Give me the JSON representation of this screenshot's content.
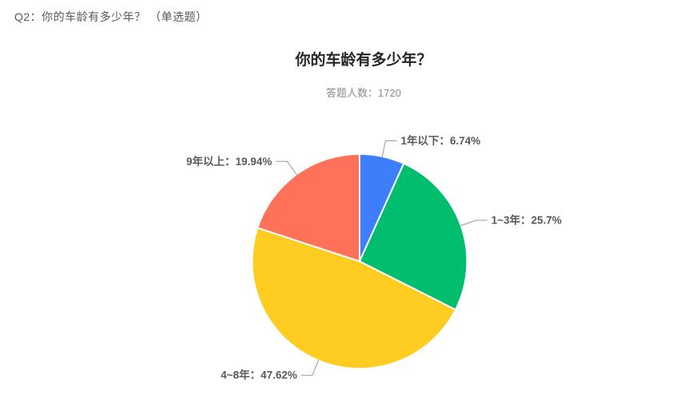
{
  "page": {
    "question_header": "Q2：你的车龄有多少年？ （单选题）"
  },
  "chart_data": {
    "type": "pie",
    "title": "你的车龄有多少年？",
    "subtitle": "答题人数：1720",
    "respondents_label": "答题人数",
    "respondents": 1720,
    "unit": "%",
    "start_angle_deg": 0,
    "direction": "clockwise",
    "label_format": "{label}：{value}%",
    "legend_position": "none",
    "leader_line_color": "#999999",
    "slice_border_color": "#ffffff",
    "slices": [
      {
        "label": "1年以下",
        "value": 6.74,
        "color": "#3D7EFB"
      },
      {
        "label": "1~3年",
        "value": 25.7,
        "color": "#00BE6E"
      },
      {
        "label": "4~8年",
        "value": 47.62,
        "color": "#FFCC21"
      },
      {
        "label": "9年以上",
        "value": 19.94,
        "color": "#FF7158"
      }
    ]
  }
}
